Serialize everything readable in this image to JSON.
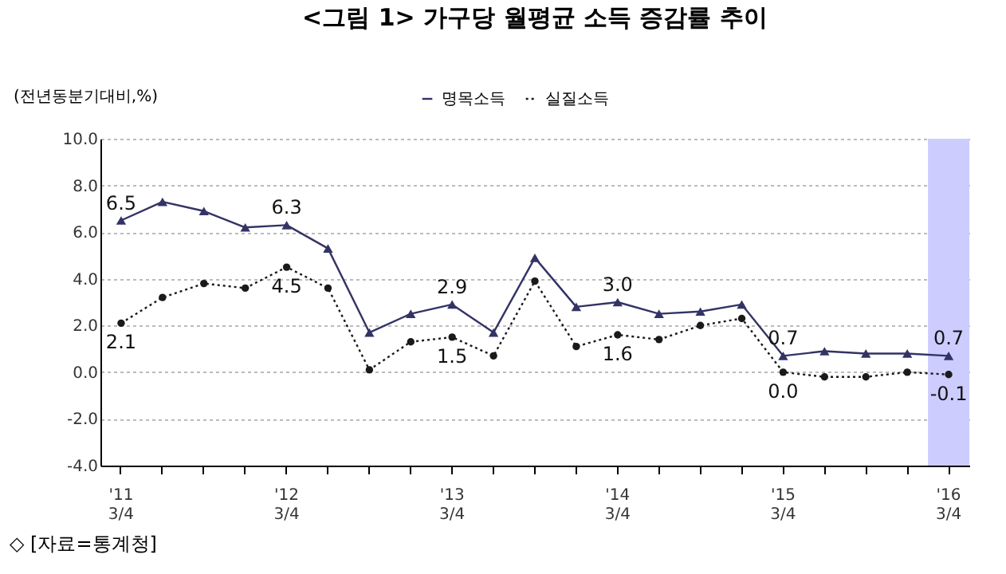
{
  "chart_data": {
    "type": "line",
    "title": "<그림 1> 가구당 월평균 소득 증감률 추이",
    "ylabel": "(전년동분기대비,%)",
    "categories": [
      "'11 3/4",
      null,
      null,
      null,
      "'12 3/4",
      null,
      null,
      null,
      "'13 3/4",
      null,
      null,
      null,
      "'14 3/4",
      null,
      null,
      null,
      "'15 3/4",
      null,
      null,
      null,
      "'16 3/4"
    ],
    "series": [
      {
        "name": "명목소득",
        "color": "#333366",
        "marker": "triangle",
        "line_style": "solid",
        "values": [
          6.5,
          7.3,
          6.9,
          6.2,
          6.3,
          5.3,
          1.7,
          2.5,
          2.9,
          1.7,
          4.9,
          2.8,
          3.0,
          2.5,
          2.6,
          2.9,
          0.7,
          0.9,
          0.8,
          0.8,
          0.7
        ],
        "value_labels": [
          "6.5",
          null,
          null,
          null,
          "6.3",
          null,
          null,
          null,
          "2.9",
          null,
          null,
          null,
          "3.0",
          null,
          null,
          null,
          "0.7",
          null,
          null,
          null,
          "0.7"
        ]
      },
      {
        "name": "실질소득",
        "color": "#1a1a1a",
        "marker": "circle",
        "line_style": "dotted",
        "values": [
          2.1,
          3.2,
          3.8,
          3.6,
          4.5,
          3.6,
          0.1,
          1.3,
          1.5,
          0.7,
          3.9,
          1.1,
          1.6,
          1.4,
          2.0,
          2.3,
          0.0,
          -0.2,
          -0.2,
          0.0,
          -0.1
        ],
        "value_labels": [
          "2.1",
          null,
          null,
          null,
          "4.5",
          null,
          null,
          null,
          "1.5",
          null,
          null,
          null,
          "1.6",
          null,
          null,
          null,
          "0.0",
          null,
          null,
          null,
          "-0.1"
        ]
      }
    ],
    "ylim": [
      -4,
      10
    ],
    "yticks": [
      {
        "value": -4,
        "label": "-4.0"
      },
      {
        "value": -2,
        "label": "-2.0"
      },
      {
        "value": 0,
        "label": "0.0"
      },
      {
        "value": 2,
        "label": "2.0"
      },
      {
        "value": 4,
        "label": "4.0"
      },
      {
        "value": 6,
        "label": "6.0"
      },
      {
        "value": 8,
        "label": "8.0"
      },
      {
        "value": 10,
        "label": "10.0"
      }
    ],
    "grid": "y",
    "legend": "top",
    "bands": [
      {
        "axis": "x",
        "from": "'16 3/4",
        "to": "'16 3/4",
        "color": "#ccccff"
      }
    ],
    "annotations": [
      "◇ [자료=통계청]"
    ]
  }
}
